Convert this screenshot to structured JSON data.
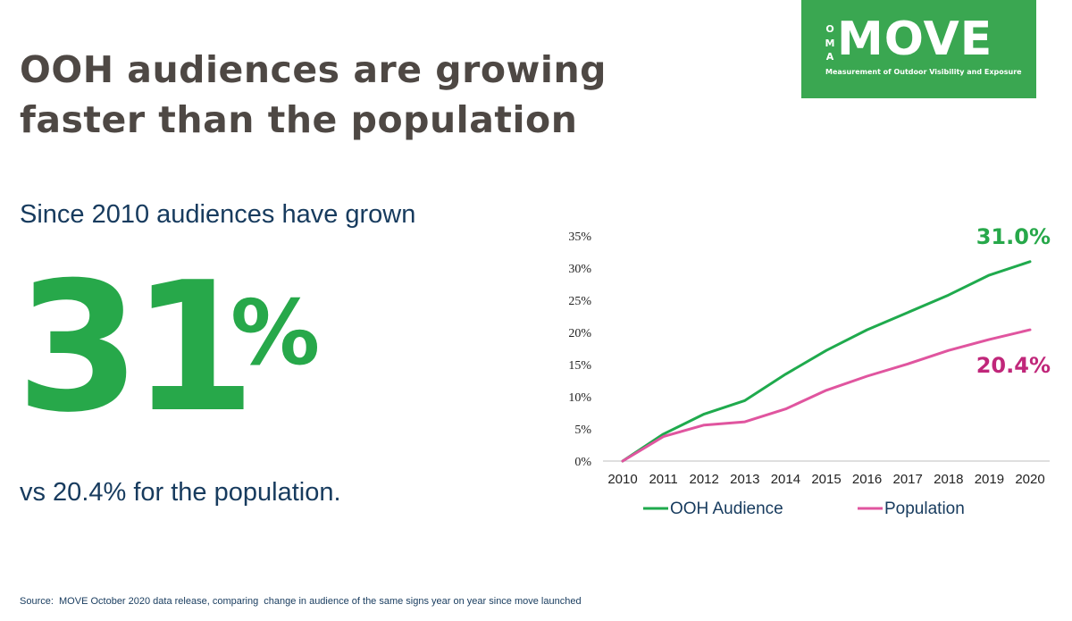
{
  "header": {
    "title_line1": "OOH audiences are growing",
    "title_line2": "faster than the population"
  },
  "logo": {
    "oma_letters": [
      "O",
      "M",
      "A"
    ],
    "name": "MOVE",
    "tagline": "Measurement of Outdoor Visibility and Exposure",
    "color": "#3aa751"
  },
  "stats": {
    "intro": "Since 2010 audiences have grown",
    "big_number": "31",
    "big_unit": "%",
    "comparison": "vs 20.4% for the population."
  },
  "footer": {
    "source": "Source:  MOVE October 2020 data release, comparing  change in audience of the same signs year on year since move launched"
  },
  "colors": {
    "title": "#4e4844",
    "body_text": "#173b5e",
    "accent_green": "#27a84a",
    "accent_pink": "#c0277a"
  },
  "chart_data": {
    "type": "line",
    "categories": [
      "2010",
      "2011",
      "2012",
      "2013",
      "2014",
      "2015",
      "2016",
      "2017",
      "2018",
      "2019",
      "2020"
    ],
    "ylim": [
      0,
      35
    ],
    "yticks": [
      0,
      5,
      10,
      15,
      20,
      25,
      30,
      35
    ],
    "ytick_labels": [
      "0%",
      "5%",
      "10%",
      "15%",
      "20%",
      "25%",
      "30%",
      "35%"
    ],
    "grid": false,
    "legend_position": "bottom",
    "series": [
      {
        "name": "OOH Audience",
        "color": "#1faa4d",
        "values": [
          0,
          4.2,
          7.3,
          9.4,
          13.5,
          17.2,
          20.4,
          23.1,
          25.8,
          28.9,
          31.0
        ],
        "end_label": "31.0%",
        "end_label_color": "#27a84a"
      },
      {
        "name": "Population",
        "color": "#e0559f",
        "values": [
          0,
          3.8,
          5.6,
          6.1,
          8.1,
          11.0,
          13.2,
          15.1,
          17.2,
          18.9,
          20.4
        ],
        "end_label": "20.4%",
        "end_label_color": "#c0277a"
      }
    ]
  }
}
